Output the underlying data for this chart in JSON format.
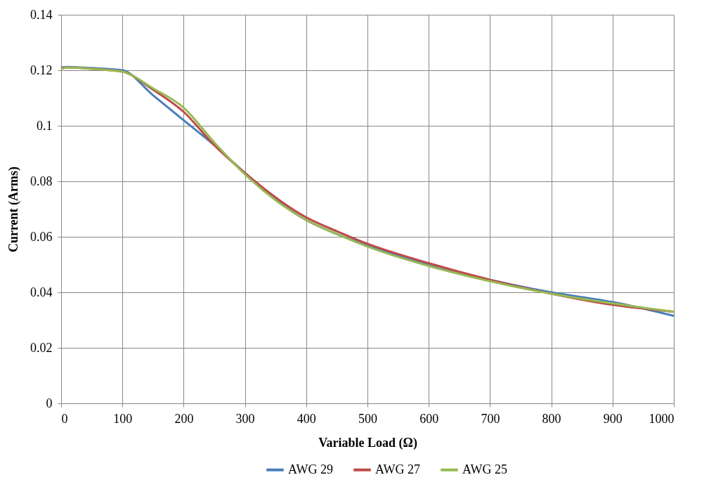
{
  "chart_data": {
    "type": "line",
    "xlabel": "Variable Load (Ω)",
    "ylabel": "Current (Arms)",
    "x": [
      0,
      10,
      50,
      100,
      150,
      200,
      250,
      300,
      400,
      450,
      500,
      600,
      700,
      800,
      900,
      1000
    ],
    "series": [
      {
        "name": "AWG 29",
        "color": "#4a7ebb",
        "values": [
          0.121,
          0.1212,
          0.1208,
          0.12,
          0.111,
          0.102,
          0.093,
          0.083,
          0.066,
          0.061,
          0.057,
          0.05,
          0.0445,
          0.04,
          0.0365,
          0.0315
        ]
      },
      {
        "name": "AWG 27",
        "color": "#be4b48",
        "values": [
          0.1205,
          0.121,
          0.1205,
          0.1195,
          0.113,
          0.105,
          0.093,
          0.083,
          0.067,
          0.062,
          0.0575,
          0.0505,
          0.0445,
          0.0395,
          0.0355,
          0.033
        ]
      },
      {
        "name": "AWG 25",
        "color": "#98b954",
        "values": [
          0.1205,
          0.121,
          0.1205,
          0.1195,
          0.1135,
          0.1065,
          0.094,
          0.0825,
          0.066,
          0.061,
          0.0565,
          0.0495,
          0.044,
          0.0395,
          0.036,
          0.033
        ]
      }
    ],
    "xlim": [
      0,
      1000
    ],
    "xticks": [
      0,
      100,
      200,
      300,
      400,
      500,
      600,
      700,
      800,
      900,
      1000
    ],
    "ylim": [
      0,
      0.14
    ],
    "yticks": [
      0,
      0.02,
      0.04,
      0.06,
      0.08,
      0.1,
      0.12,
      0.14
    ],
    "grid": true,
    "legend": "bottom",
    "marker": "none",
    "line_style": "solid"
  }
}
